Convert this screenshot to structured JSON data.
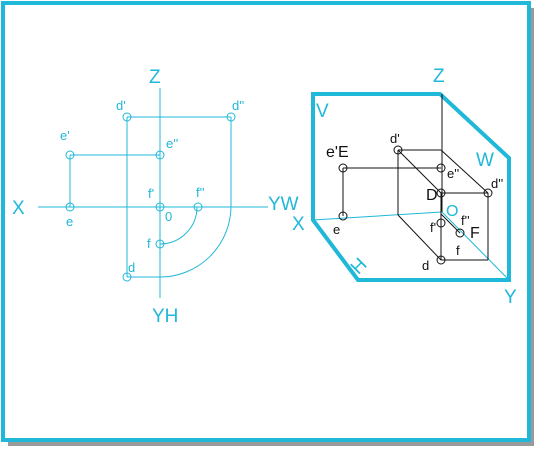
{
  "colors": {
    "frame": "#1fb8d8",
    "line": "#1fb8d8",
    "black_line": "#111111",
    "shadow": "#9a9a9a",
    "background": "#ffffff"
  },
  "left_view": {
    "axis_labels": {
      "z": "Z",
      "x": "X",
      "yw": "YW",
      "yh": "YH",
      "origin": "0"
    },
    "point_labels": {
      "d_prime": "d'",
      "d_double": "d''",
      "e_prime": "e'",
      "e_double": "e''",
      "e": "e",
      "f_prime": "f'",
      "f_double": "f''",
      "f": "f",
      "d": "d"
    }
  },
  "right_view": {
    "axis_labels": {
      "z": "Z",
      "x": "X",
      "y": "Y",
      "origin": "O"
    },
    "plane_labels": {
      "v": "V",
      "w": "W",
      "h": "H"
    },
    "point_labels": {
      "d_prime": "d'",
      "e_prime_E": "e'E",
      "e_double": "e''",
      "d_double": "d''",
      "D": "D",
      "e": "e",
      "f_double": "f''",
      "f_prime": "f'",
      "F": "F",
      "f": "f",
      "d": "d"
    }
  }
}
